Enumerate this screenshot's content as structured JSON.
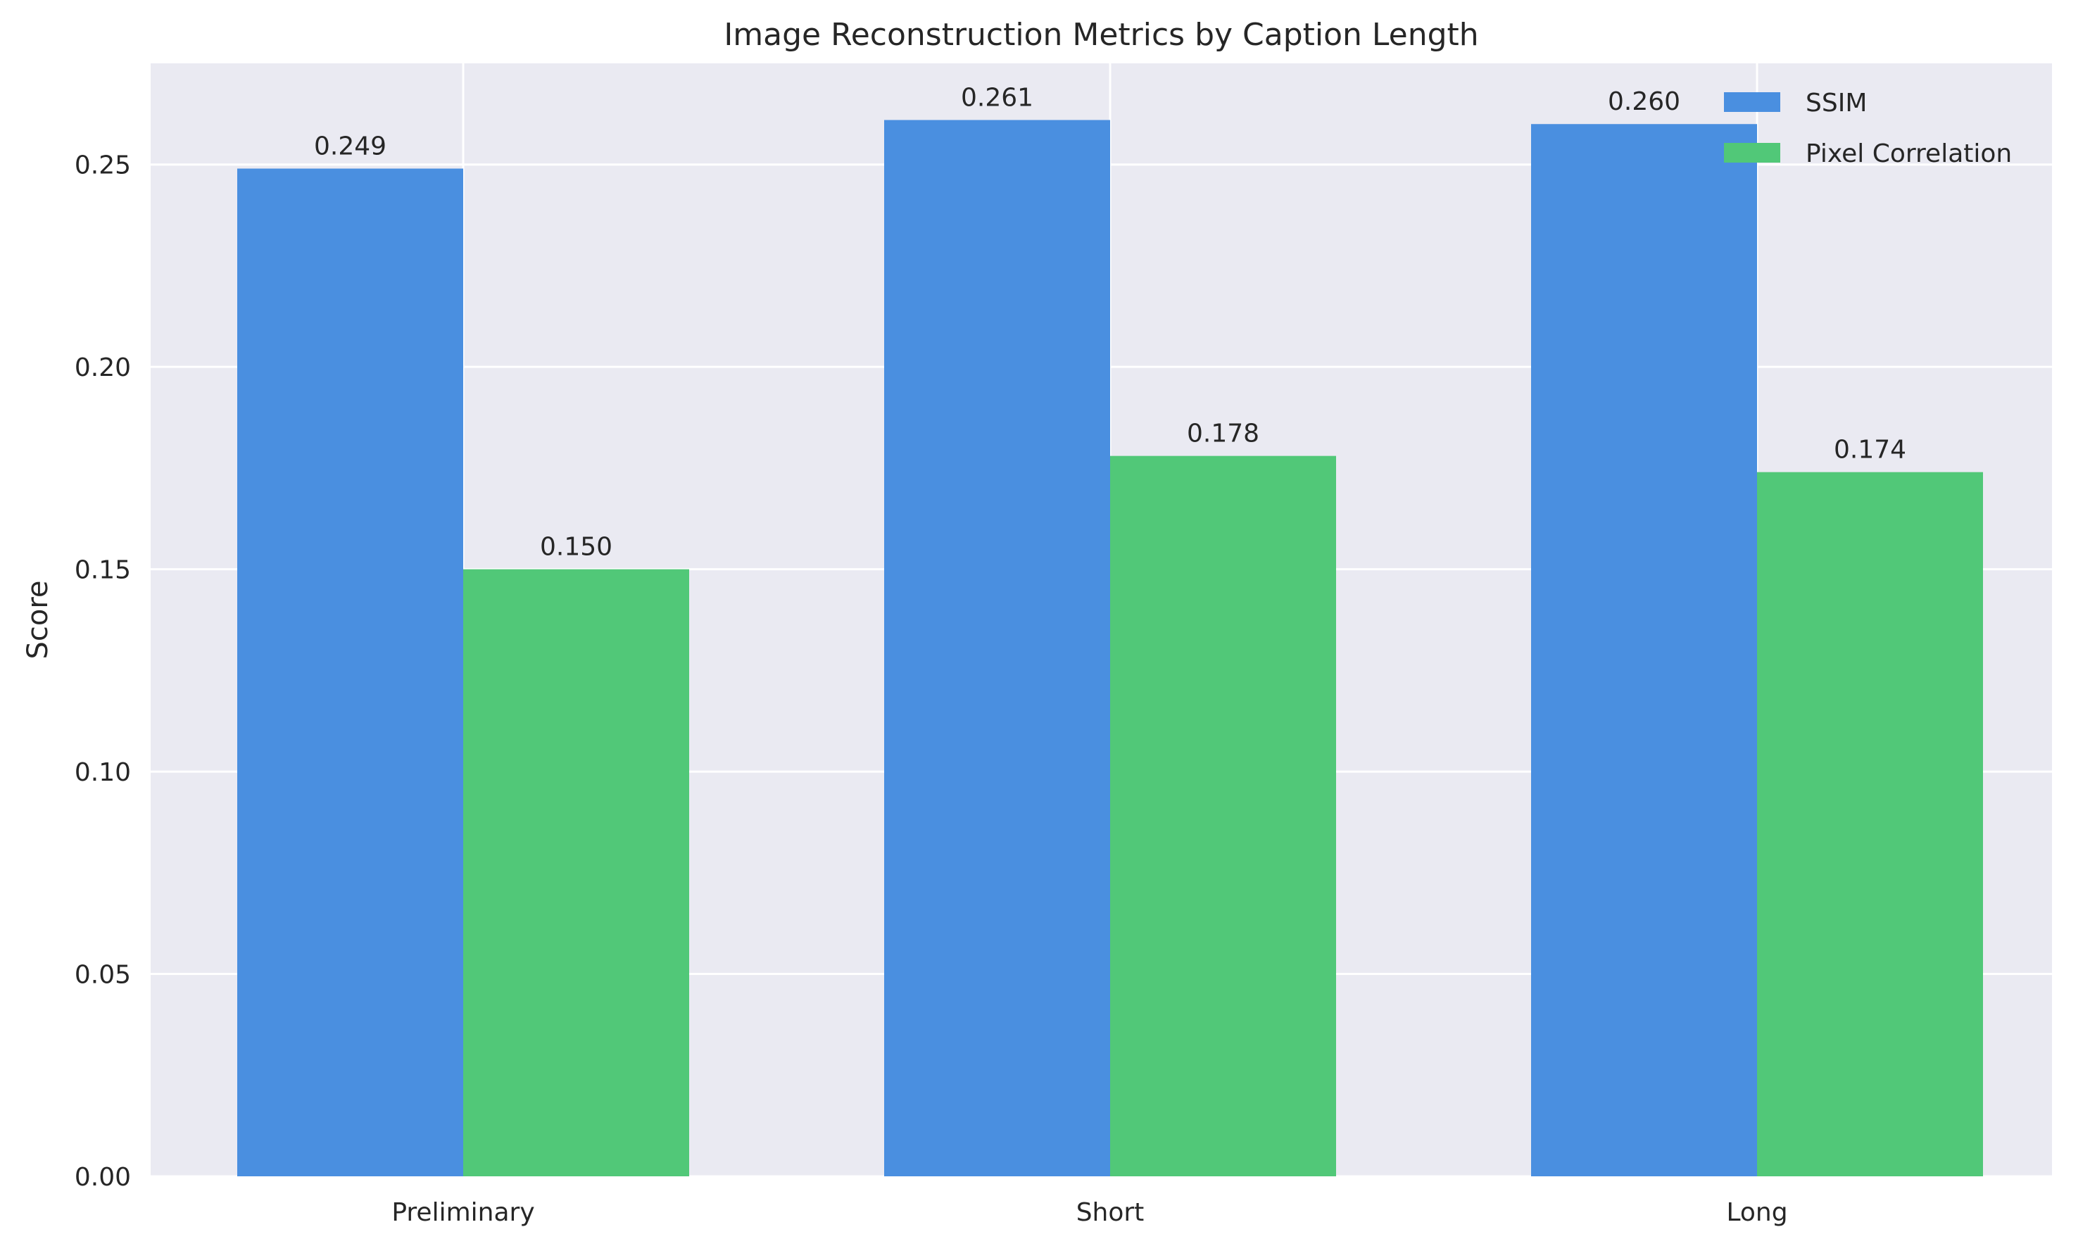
{
  "chart_data": {
    "type": "bar",
    "title": "Image Reconstruction Metrics by Caption Length",
    "xlabel": "",
    "ylabel": "Score",
    "categories": [
      "Preliminary",
      "Short",
      "Long"
    ],
    "series": [
      {
        "name": "SSIM",
        "values": [
          0.249,
          0.261,
          0.26
        ],
        "labels": [
          "0.249",
          "0.261",
          "0.260"
        ],
        "color": "#4a8fe0"
      },
      {
        "name": "Pixel Correlation",
        "values": [
          0.15,
          0.178,
          0.174
        ],
        "labels": [
          "0.150",
          "0.178",
          "0.174"
        ],
        "color": "#51c878"
      }
    ],
    "ylim": [
      0,
      0.275
    ],
    "yticks": [
      0,
      0.05,
      0.1,
      0.15,
      0.2,
      0.25
    ],
    "ytick_labels": [
      "0.00",
      "0.05",
      "0.10",
      "0.15",
      "0.20",
      "0.25"
    ],
    "grid": true,
    "legend_position": "top-right",
    "background_color": "#eaeaf2",
    "grid_color": "#ffffff"
  }
}
